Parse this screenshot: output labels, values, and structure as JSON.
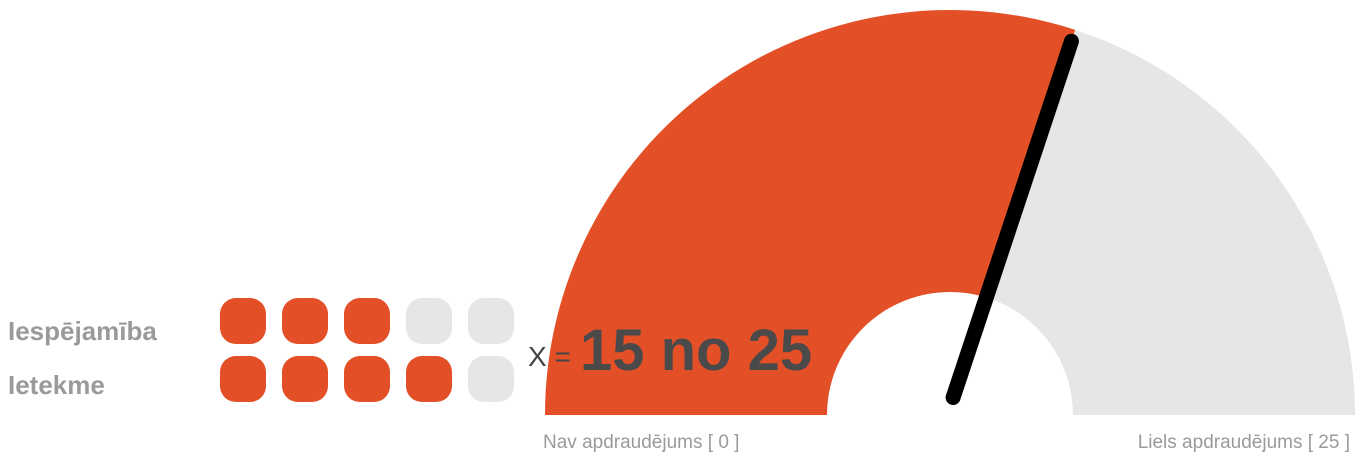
{
  "gauge": {
    "min": 0,
    "max": 25,
    "value": 15,
    "prefix": "X =",
    "label": "15 no 25",
    "min_label": "Nav apdraudējums [ 0 ]",
    "max_label": "Liels apdraudējums [ 25 ]",
    "fill_color": "#e34f26",
    "track_color": "#e6e6e6",
    "needle_color": "#000000"
  },
  "ratings": [
    {
      "label": "Iespējamība",
      "value": 3,
      "max": 5
    },
    {
      "label": "Ietekme",
      "value": 4,
      "max": 5
    }
  ]
}
